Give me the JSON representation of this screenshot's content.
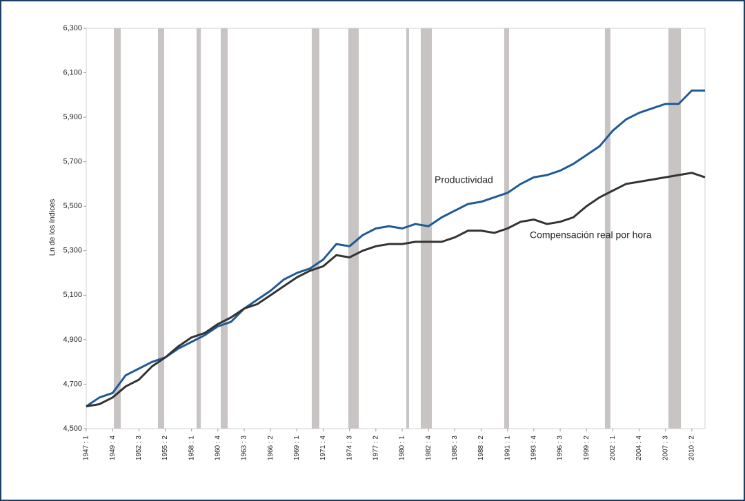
{
  "chart_data": {
    "type": "line",
    "y_label": "Ln de los índices",
    "annotations": [
      {
        "text": "Productividad",
        "series": 0
      },
      {
        "text": "Compensación real por hora",
        "series": 1
      }
    ],
    "categories": [
      "1947 : 1",
      null,
      "1949 : 4",
      null,
      "1952 : 3",
      null,
      "1955 : 2",
      null,
      "1958 : 1",
      null,
      "1960 : 4",
      null,
      "1963 : 3",
      null,
      "1966 : 2",
      null,
      "1969 : 1",
      null,
      "1971 : 4",
      null,
      "1974 : 3",
      null,
      "1977 : 2",
      null,
      "1980 : 1",
      null,
      "1982 : 4",
      null,
      "1985 : 3",
      null,
      "1988 : 2",
      null,
      "1991 : 1",
      null,
      "1993 : 4",
      null,
      "1996 : 3",
      null,
      "1999 : 2",
      null,
      "2002 : 1",
      null,
      "2004 : 4",
      null,
      "2007 : 3",
      null,
      "2010 : 2",
      null
    ],
    "series": [
      {
        "name": "Productividad",
        "color": "#1f5a96",
        "values": [
          4.6,
          4.64,
          4.66,
          4.74,
          4.77,
          4.8,
          4.82,
          4.86,
          4.89,
          4.92,
          4.96,
          4.98,
          5.04,
          5.08,
          5.12,
          5.17,
          5.2,
          5.22,
          5.26,
          5.33,
          5.32,
          5.37,
          5.4,
          5.41,
          5.4,
          5.42,
          5.41,
          5.45,
          5.48,
          5.51,
          5.52,
          5.54,
          5.56,
          5.6,
          5.63,
          5.64,
          5.66,
          5.69,
          5.73,
          5.77,
          5.84,
          5.89,
          5.92,
          5.94,
          5.96,
          5.96,
          6.02,
          6.02
        ]
      },
      {
        "name": "Compensación real por hora",
        "color": "#333333",
        "values": [
          4.6,
          4.61,
          4.64,
          4.69,
          4.72,
          4.78,
          4.82,
          4.87,
          4.91,
          4.93,
          4.97,
          5.0,
          5.04,
          5.06,
          5.1,
          5.14,
          5.18,
          5.21,
          5.23,
          5.28,
          5.27,
          5.3,
          5.32,
          5.33,
          5.33,
          5.34,
          5.34,
          5.34,
          5.36,
          5.39,
          5.39,
          5.38,
          5.4,
          5.43,
          5.44,
          5.42,
          5.43,
          5.45,
          5.5,
          5.54,
          5.57,
          5.6,
          5.61,
          5.62,
          5.63,
          5.64,
          5.65,
          5.63
        ]
      }
    ],
    "shaded_periods": [
      [
        2.1,
        2.62
      ],
      [
        5.45,
        5.92
      ],
      [
        8.38,
        8.7
      ],
      [
        10.22,
        10.74
      ],
      [
        17.13,
        17.71
      ],
      [
        19.91,
        20.7
      ],
      [
        24.31,
        24.52
      ],
      [
        25.41,
        26.25
      ],
      [
        31.75,
        32.12
      ],
      [
        39.4,
        39.82
      ],
      [
        44.22,
        45.17
      ]
    ],
    "shade_color": "#c8c4c4",
    "ylim": [
      4.5,
      6.3
    ],
    "yticks": [
      {
        "value": 4.5,
        "label": "4,500"
      },
      {
        "value": 4.7,
        "label": "4,700"
      },
      {
        "value": 4.9,
        "label": "4,900"
      },
      {
        "value": 5.1,
        "label": "5,100"
      },
      {
        "value": 5.3,
        "label": "5,300"
      },
      {
        "value": 5.5,
        "label": "5,500"
      },
      {
        "value": 5.7,
        "label": "5,700"
      },
      {
        "value": 5.9,
        "label": "5,900"
      },
      {
        "value": 6.1,
        "label": "6,100"
      },
      {
        "value": 6.3,
        "label": "6,300"
      }
    ],
    "grid": false
  }
}
